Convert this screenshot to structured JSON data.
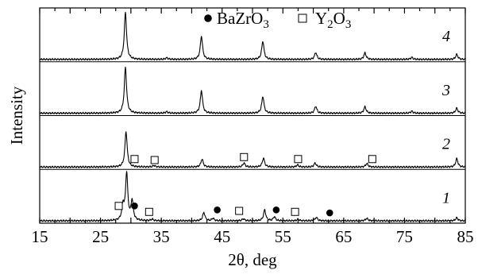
{
  "chart_data": {
    "type": "line",
    "xlabel": "2θ, deg",
    "ylabel": "Intensity",
    "xlim": [
      15,
      85
    ],
    "x_ticks": [
      15,
      25,
      35,
      45,
      55,
      65,
      75,
      85
    ],
    "grid": false,
    "legend": {
      "placement": "top-center",
      "entries": [
        {
          "label": "BaZrO",
          "sub": "3",
          "marker": "filled-circle"
        },
        {
          "label": "Y",
          "sub1": "2",
          "mid": "O",
          "sub2": "3",
          "marker": "open-square"
        }
      ]
    },
    "series": [
      {
        "name": "4",
        "peaks": [
          {
            "x": 29.1,
            "h": 0.95
          },
          {
            "x": 35.9,
            "h": 0.03
          },
          {
            "x": 41.6,
            "h": 0.47
          },
          {
            "x": 51.7,
            "h": 0.37
          },
          {
            "x": 60.4,
            "h": 0.14
          },
          {
            "x": 68.5,
            "h": 0.13
          },
          {
            "x": 76.2,
            "h": 0.04
          },
          {
            "x": 83.6,
            "h": 0.1
          }
        ],
        "markers": []
      },
      {
        "name": "3",
        "peaks": [
          {
            "x": 29.1,
            "h": 0.93
          },
          {
            "x": 35.9,
            "h": 0.03
          },
          {
            "x": 41.6,
            "h": 0.46
          },
          {
            "x": 51.7,
            "h": 0.34
          },
          {
            "x": 60.4,
            "h": 0.14
          },
          {
            "x": 68.5,
            "h": 0.13
          },
          {
            "x": 76.2,
            "h": 0.04
          },
          {
            "x": 83.6,
            "h": 0.1
          }
        ],
        "markers": []
      },
      {
        "name": "2",
        "peaks": [
          {
            "x": 29.2,
            "h": 0.72
          },
          {
            "x": 33.8,
            "h": 0.03
          },
          {
            "x": 41.7,
            "h": 0.16
          },
          {
            "x": 48.6,
            "h": 0.08
          },
          {
            "x": 51.8,
            "h": 0.18
          },
          {
            "x": 57.4,
            "h": 0.04
          },
          {
            "x": 60.3,
            "h": 0.08
          },
          {
            "x": 68.8,
            "h": 0.07
          },
          {
            "x": 83.6,
            "h": 0.17
          }
        ],
        "markers": [
          {
            "x": 30.6,
            "h": 0.16,
            "kind": "square"
          },
          {
            "x": 33.9,
            "h": 0.14,
            "kind": "square"
          },
          {
            "x": 48.6,
            "h": 0.2,
            "kind": "square"
          },
          {
            "x": 57.5,
            "h": 0.16,
            "kind": "square"
          },
          {
            "x": 69.7,
            "h": 0.16,
            "kind": "square"
          }
        ]
      },
      {
        "name": "1",
        "peaks": [
          {
            "x": 28.7,
            "h": 0.3
          },
          {
            "x": 29.3,
            "h": 0.95
          },
          {
            "x": 30.2,
            "h": 0.4
          },
          {
            "x": 33.5,
            "h": 0.03
          },
          {
            "x": 42.0,
            "h": 0.17
          },
          {
            "x": 43.5,
            "h": 0.05
          },
          {
            "x": 48.5,
            "h": 0.04
          },
          {
            "x": 52.0,
            "h": 0.22
          },
          {
            "x": 53.6,
            "h": 0.08
          },
          {
            "x": 57.5,
            "h": 0.03
          },
          {
            "x": 60.5,
            "h": 0.07
          },
          {
            "x": 68.8,
            "h": 0.05
          },
          {
            "x": 83.6,
            "h": 0.06
          }
        ],
        "markers": [
          {
            "x": 28.0,
            "h": 0.3,
            "kind": "square"
          },
          {
            "x": 30.6,
            "h": 0.3,
            "kind": "circle"
          },
          {
            "x": 33.0,
            "h": 0.18,
            "kind": "square"
          },
          {
            "x": 44.2,
            "h": 0.22,
            "kind": "circle"
          },
          {
            "x": 47.8,
            "h": 0.2,
            "kind": "square"
          },
          {
            "x": 53.9,
            "h": 0.22,
            "kind": "circle"
          },
          {
            "x": 57.0,
            "h": 0.18,
            "kind": "square"
          },
          {
            "x": 62.7,
            "h": 0.16,
            "kind": "circle"
          }
        ]
      }
    ]
  }
}
